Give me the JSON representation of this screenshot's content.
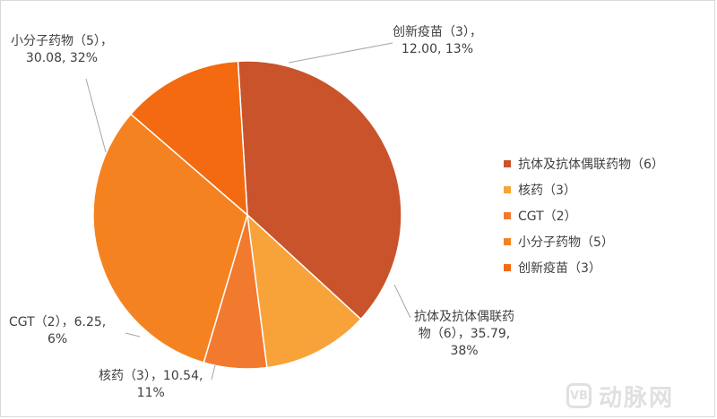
{
  "chart_data": {
    "type": "pie",
    "slices": [
      {
        "label": "抗体及抗体偶联药物（6）",
        "value": 35.79,
        "percent": "38%",
        "color": "#C9532B"
      },
      {
        "label": "核药（3）",
        "value": 10.54,
        "percent": "11%",
        "color": "#F7A33A"
      },
      {
        "label": "CGT（2）",
        "value": 6.25,
        "percent": "6%",
        "color": "#F27A2E"
      },
      {
        "label": "小分子药物（5）",
        "value": 30.08,
        "percent": "32%",
        "color": "#F58220"
      },
      {
        "label": "创新疫苗（3）",
        "value": 12.0,
        "percent": "13%",
        "color": "#F36A10"
      }
    ],
    "data_labels": {
      "vaccine": "创新疫苗（3），\n12.00, 13%",
      "small_molecule": "小分子药物（5），\n30.08, 32%",
      "antibody": "抗体及抗体偶联药\n物（6），35.79,\n38%",
      "nuclear": "核药（3），10.54,\n11%",
      "cgt": "CGT（2），6.25,\n6%"
    },
    "legend_position": "right",
    "legend": [
      "抗体及抗体偶联药物（6）",
      "核药（3）",
      "CGT（2）",
      "小分子药物（5）",
      "创新疫苗（3）"
    ]
  },
  "watermark": {
    "logo_text": "VB",
    "text": "动脉网"
  }
}
